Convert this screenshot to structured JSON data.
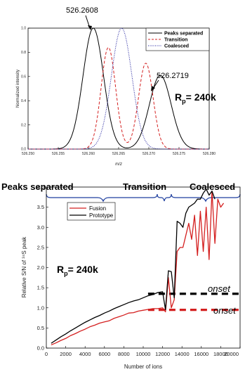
{
  "chart_data": [
    {
      "type": "line",
      "xlabel": "m/z",
      "ylabel": "Normalized intensity",
      "xlim": [
        526.25,
        526.28
      ],
      "ylim": [
        0.0,
        1.0
      ],
      "x_ticks": [
        "526.250",
        "526.255",
        "526.260",
        "526.265",
        "526.270",
        "526.275",
        "526.280"
      ],
      "y_ticks": [
        "0.0",
        "0.2",
        "0.4",
        "0.6",
        "0.8",
        "1.0"
      ],
      "grid": false,
      "legend_position": "top-right",
      "series": [
        {
          "name": "Peaks separated",
          "color": "#000000",
          "dash": "solid",
          "peaks": [
            {
              "center": 526.2608,
              "height": 1.0,
              "sigma": 0.0017
            },
            {
              "center": 526.2719,
              "height": 0.61,
              "sigma": 0.0018
            }
          ]
        },
        {
          "name": "Transition",
          "color": "#d42020",
          "dash": "dashed",
          "peaks": [
            {
              "center": 526.2633,
              "height": 0.84,
              "sigma": 0.0012
            },
            {
              "center": 526.2695,
              "height": 0.71,
              "sigma": 0.0012
            }
          ]
        },
        {
          "name": "Coalesced",
          "color": "#1a1a9c",
          "dash": "dotted",
          "peaks": [
            {
              "center": 526.2655,
              "height": 1.0,
              "sigma": 0.0017
            }
          ]
        }
      ],
      "annotations": [
        "526.2608",
        "526.2719"
      ],
      "resolution_label": "R",
      "resolution_sub": "p",
      "resolution_value": "= 240k"
    },
    {
      "type": "line",
      "xlabel": "Number of ions",
      "ylabel": "Relative S/N of ³⁴S peak",
      "xlim": [
        0,
        20000
      ],
      "ylim": [
        0.0,
        4.0
      ],
      "x_ticks": [
        "0",
        "2000",
        "4000",
        "6000",
        "8000",
        "10000",
        "12000",
        "14000",
        "16000",
        "18000",
        "20000"
      ],
      "y_ticks": [
        "0.0",
        "0.5",
        "1.0",
        "1.5",
        "2.0",
        "2.5",
        "3.0",
        "3.5",
        "4.0"
      ],
      "grid": false,
      "legend_position": "top-left",
      "regions": [
        "Peaks separated",
        "Transition",
        "Coalesced"
      ],
      "series": [
        {
          "name": "Fusion",
          "color": "#d42020",
          "x": [
            500,
            1000,
            1500,
            2000,
            2500,
            3000,
            3500,
            4000,
            4500,
            5000,
            5500,
            6000,
            6500,
            7000,
            7500,
            8000,
            8500,
            9000,
            9500,
            10000,
            10500,
            11000,
            11500,
            12000,
            12300,
            12600,
            12900,
            13200,
            13500,
            13800,
            14100,
            14400,
            14700,
            15000,
            15300,
            15600,
            15900,
            16200,
            16500,
            16800,
            17100,
            17400,
            17700,
            18000,
            18300
          ],
          "y": [
            0.08,
            0.13,
            0.19,
            0.24,
            0.31,
            0.36,
            0.42,
            0.47,
            0.53,
            0.57,
            0.62,
            0.65,
            0.68,
            0.74,
            0.78,
            0.82,
            0.87,
            0.88,
            0.92,
            0.94,
            0.96,
            0.98,
            0.98,
            1.0,
            0.9,
            1.75,
            1.0,
            1.2,
            2.4,
            2.5,
            2.5,
            2.8,
            3.1,
            2.7,
            3.3,
            2.3,
            3.4,
            2.4,
            3.5,
            2.2,
            3.9,
            2.6,
            3.7,
            3.5,
            3.6
          ]
        },
        {
          "name": "Prototype",
          "color": "#000000",
          "x": [
            500,
            1000,
            1500,
            2000,
            2500,
            3000,
            3500,
            4000,
            4500,
            5000,
            5500,
            6000,
            6500,
            7000,
            7500,
            8000,
            8500,
            9000,
            9500,
            10000,
            10500,
            11000,
            11500,
            12000,
            12300,
            12600,
            12900,
            13200,
            13500,
            13800,
            14100,
            14400,
            14700,
            15000,
            15300,
            15600,
            15900,
            16200,
            16500,
            16800,
            17100,
            17400
          ],
          "y": [
            0.12,
            0.2,
            0.28,
            0.35,
            0.43,
            0.5,
            0.57,
            0.64,
            0.7,
            0.76,
            0.81,
            0.87,
            0.92,
            0.98,
            1.03,
            1.08,
            1.13,
            1.17,
            1.2,
            1.25,
            1.3,
            1.33,
            1.38,
            1.4,
            0.95,
            1.92,
            1.9,
            1.25,
            3.15,
            3.1,
            3.0,
            3.35,
            3.5,
            3.55,
            3.6,
            3.7,
            3.7,
            3.85,
            3.95,
            3.8,
            3.9,
            3.7
          ]
        }
      ],
      "onset_lines": [
        {
          "label": "onset",
          "y": 1.35,
          "x_start": 10500,
          "color": "#000000"
        },
        {
          "label": "onset",
          "y": 0.95,
          "x_start": 10500,
          "color": "#d42020"
        }
      ],
      "resolution_label": "R",
      "resolution_sub": "p",
      "resolution_value": "= 240k"
    }
  ]
}
